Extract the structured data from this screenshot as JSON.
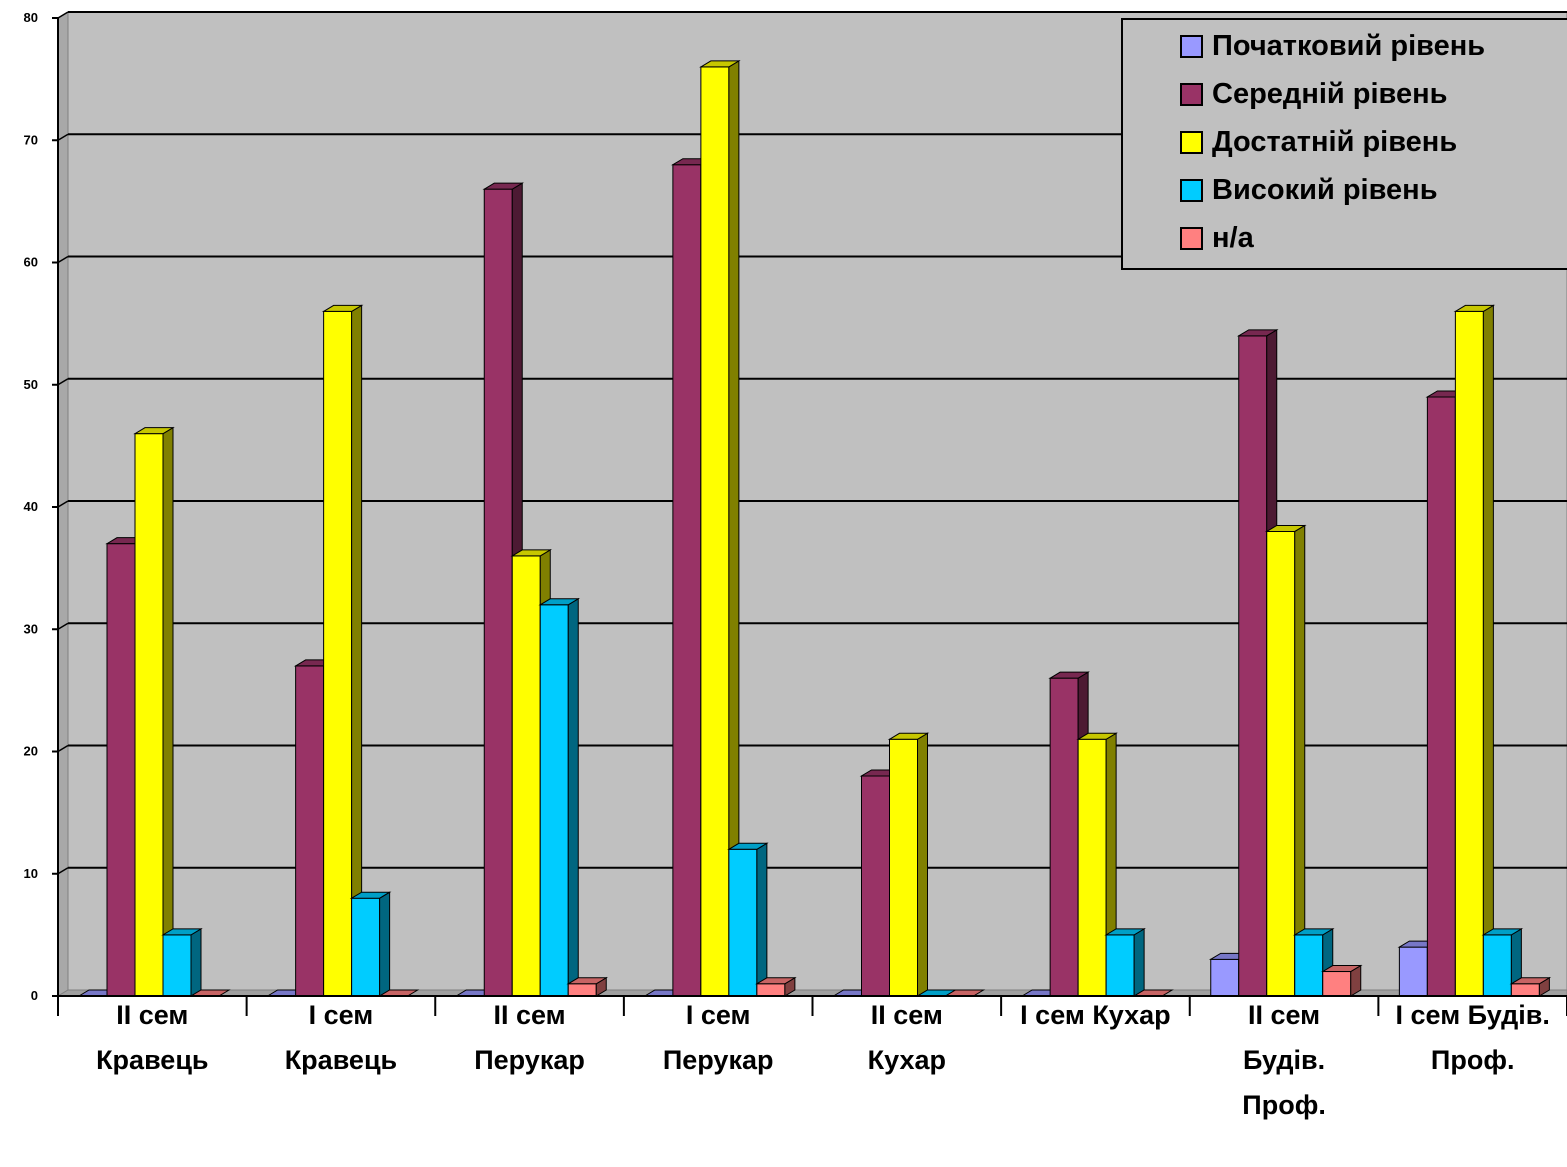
{
  "chart_data": {
    "type": "bar",
    "title": "",
    "xlabel": "",
    "ylabel": "",
    "ylim": [
      0,
      80
    ],
    "yticks": [
      "0",
      "10",
      "20",
      "30",
      "40",
      "50",
      "60",
      "70",
      "80"
    ],
    "grid": true,
    "legend_position": "top-right",
    "categories": [
      [
        "II сем",
        "Кравець"
      ],
      [
        "I сем",
        "Кравець"
      ],
      [
        "II сем",
        "Перукар"
      ],
      [
        "I сем",
        "Перукар"
      ],
      [
        "II сем",
        "Кухар"
      ],
      [
        "I сем Кухар"
      ],
      [
        "II сем",
        "Будів.",
        "Проф."
      ],
      [
        "I сем Будів.",
        "Проф."
      ]
    ],
    "series": [
      {
        "name": "Початковий рівень",
        "color": "#9999FF",
        "values": [
          0,
          0,
          0,
          0,
          0,
          0,
          3,
          4
        ]
      },
      {
        "name": "Середній рівень",
        "color": "#993366",
        "values": [
          37,
          27,
          66,
          68,
          18,
          26,
          54,
          49
        ]
      },
      {
        "name": "Достатній рівень",
        "color": "#FFFF00",
        "values": [
          46,
          56,
          36,
          76,
          21,
          21,
          38,
          56
        ]
      },
      {
        "name": "Високий рівень",
        "color": "#00CCFF",
        "values": [
          5,
          8,
          32,
          12,
          0,
          5,
          5,
          5
        ]
      },
      {
        "name": "н/а",
        "color": "#FF8080",
        "values": [
          0,
          0,
          1,
          1,
          0,
          0,
          2,
          1
        ]
      }
    ]
  }
}
